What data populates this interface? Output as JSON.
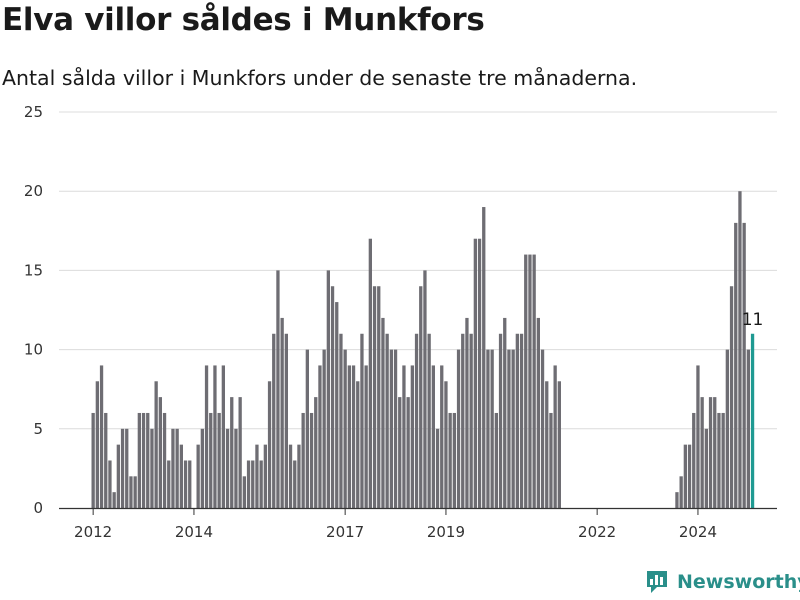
{
  "chart_data": {
    "type": "bar",
    "title": "Elva villor såldes i Munkfors",
    "subtitle": "Antal sålda villor i Munkfors under de senaste tre månaderna.",
    "xlabel": "",
    "ylabel": "",
    "ylim": [
      0,
      25
    ],
    "y_ticks": [
      0,
      5,
      10,
      15,
      20,
      25
    ],
    "x_tick_labels": [
      {
        "label": "2012",
        "index": 0
      },
      {
        "label": "2014",
        "index": 24
      },
      {
        "label": "2017",
        "index": 60
      },
      {
        "label": "2019",
        "index": 84
      },
      {
        "label": "2022",
        "index": 120
      },
      {
        "label": "2024",
        "index": 144
      }
    ],
    "grid": "horizontal",
    "bar_color": "#6e6d73",
    "highlight_color": "#1f9a92",
    "series": [
      {
        "values": [
          6,
          8,
          9,
          6,
          3,
          1,
          4,
          5,
          5,
          2,
          2,
          6,
          6,
          6,
          5,
          8,
          7,
          6,
          3,
          5,
          5,
          4,
          3,
          3,
          0,
          4,
          5,
          9,
          6,
          9,
          6,
          9,
          5,
          7,
          5,
          7,
          2,
          3,
          3,
          4,
          3,
          4,
          8,
          11,
          15,
          12,
          11,
          4,
          3,
          4,
          6,
          10,
          6,
          7,
          9,
          10,
          15,
          14,
          13,
          11,
          10,
          9,
          9,
          8,
          11,
          9,
          17,
          14,
          14,
          12,
          11,
          10,
          10,
          7,
          9,
          7,
          9,
          11,
          14,
          15,
          11,
          9,
          5,
          9,
          8,
          6,
          6,
          10,
          11,
          12,
          11,
          17,
          17,
          19,
          10,
          10,
          6,
          11,
          12,
          10,
          10,
          11,
          11,
          16,
          16,
          16,
          12,
          10,
          8,
          6,
          9,
          8,
          0,
          0,
          0,
          0,
          0,
          0,
          0,
          0,
          0,
          0,
          0,
          0,
          0,
          0,
          0,
          0,
          0,
          0,
          0,
          0,
          0,
          0,
          0,
          0,
          0,
          0,
          0,
          1,
          2,
          4,
          4,
          6,
          9,
          7,
          5,
          7,
          7,
          6,
          6,
          10,
          14,
          18,
          20,
          18,
          10,
          11
        ]
      }
    ],
    "annotation": {
      "text": "11",
      "index": 157
    },
    "highlight_index": 157
  },
  "brand": {
    "name": "Newsworthy"
  }
}
